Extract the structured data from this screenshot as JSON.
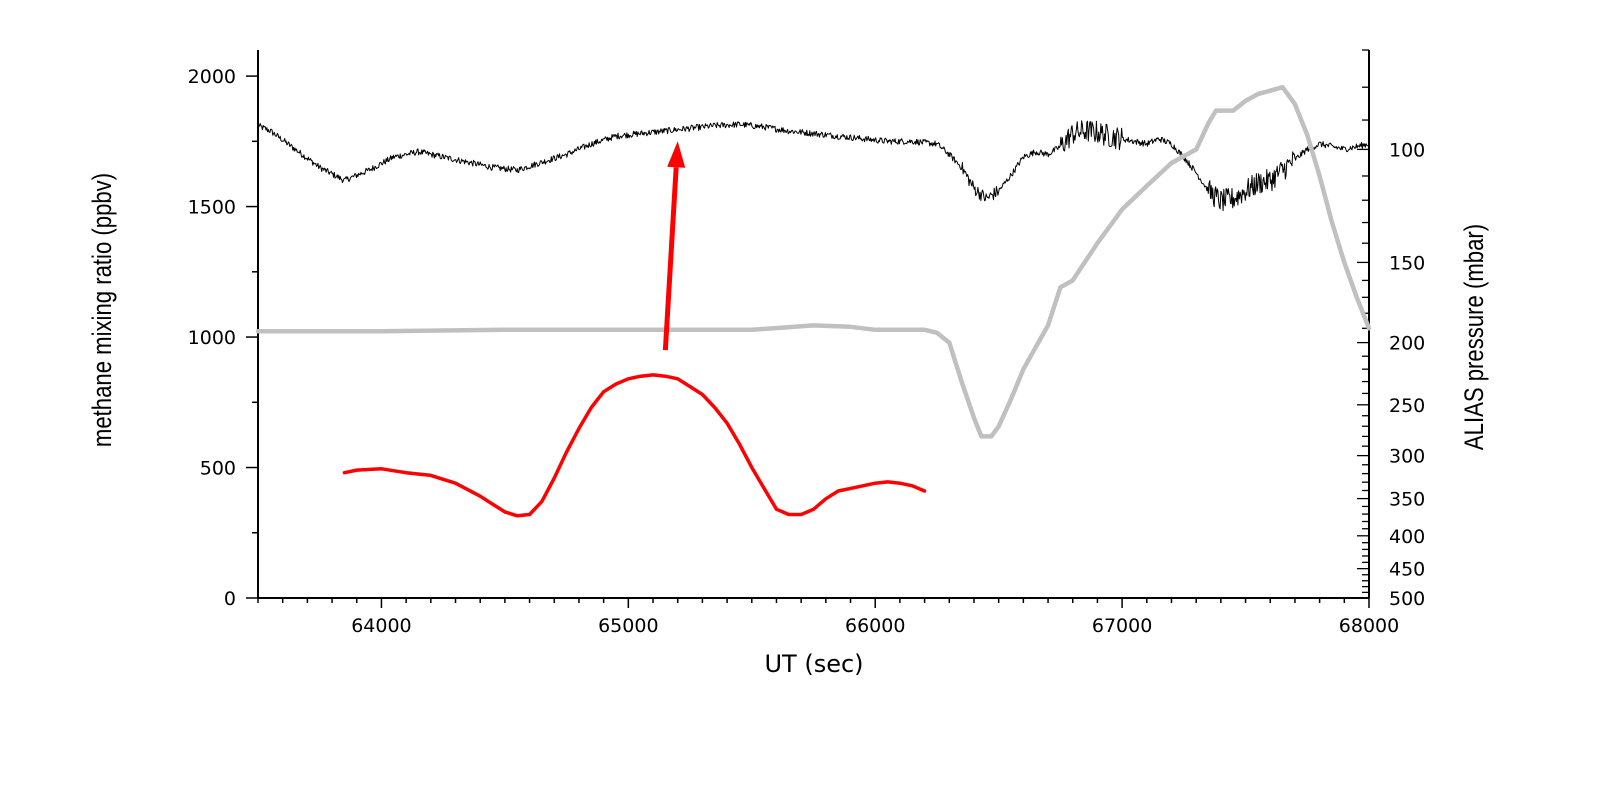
{
  "chart_data": {
    "type": "line",
    "title": "",
    "xlabel": "UT (sec)",
    "ylabel": "methane mixing ratio (ppbv)",
    "y2label": "ALIAS pressure (mbar)",
    "xlim": [
      63500,
      68000
    ],
    "ylim": [
      0,
      2100
    ],
    "y2lim": [
      70,
      500
    ],
    "y2_scale": "log",
    "y2_inverted": true,
    "grid": false,
    "legend": "none",
    "x_ticks": [
      "64000",
      "65000",
      "66000",
      "67000",
      "68000"
    ],
    "y_ticks": [
      "0",
      "500",
      "1000",
      "1500",
      "2000"
    ],
    "y2_ticks": [
      "100",
      "150",
      "200",
      "250",
      "300",
      "350",
      "400",
      "450",
      "500"
    ],
    "series": [
      {
        "axis": "left",
        "color": "#000000",
        "noisy": true,
        "x": [
          63500,
          63550,
          63650,
          63750,
          63850,
          63950,
          64050,
          64150,
          64250,
          64350,
          64450,
          64550,
          64650,
          64750,
          64850,
          64950,
          65050,
          65150,
          65250,
          65350,
          65450,
          65550,
          65650,
          65750,
          65850,
          65950,
          66050,
          66150,
          66250,
          66300,
          66350,
          66400,
          66450,
          66500,
          66550,
          66600,
          66650,
          66700,
          66750,
          66800,
          66850,
          66900,
          66950,
          67000,
          67050,
          67100,
          67150,
          67200,
          67250,
          67300,
          67350,
          67400,
          67450,
          67500,
          67550,
          67600,
          67650,
          67700,
          67750,
          67800,
          67850,
          67900,
          67950,
          68000
        ],
        "values": [
          1810,
          1790,
          1720,
          1650,
          1600,
          1640,
          1690,
          1710,
          1690,
          1670,
          1650,
          1640,
          1670,
          1700,
          1740,
          1770,
          1780,
          1790,
          1800,
          1810,
          1815,
          1805,
          1790,
          1780,
          1770,
          1760,
          1750,
          1750,
          1740,
          1700,
          1650,
          1570,
          1530,
          1560,
          1620,
          1690,
          1710,
          1700,
          1730,
          1780,
          1790,
          1785,
          1770,
          1760,
          1750,
          1740,
          1760,
          1740,
          1690,
          1630,
          1560,
          1520,
          1530,
          1560,
          1590,
          1600,
          1640,
          1680,
          1720,
          1740,
          1730,
          1720,
          1730,
          1740
        ]
      },
      {
        "axis": "right",
        "color": "#c0c0c0",
        "x": [
          63500,
          64000,
          64500,
          65000,
          65500,
          65750,
          65900,
          66000,
          66100,
          66200,
          66250,
          66300,
          66350,
          66400,
          66430,
          66470,
          66500,
          66550,
          66600,
          66700,
          66750,
          66800,
          66900,
          67000,
          67100,
          67200,
          67300,
          67350,
          67380,
          67450,
          67500,
          67550,
          67600,
          67650,
          67700,
          67750,
          67800,
          67850,
          67900,
          67950,
          68000
        ],
        "values": [
          192,
          192,
          191,
          191,
          191,
          188,
          189,
          191,
          191,
          191,
          193,
          200,
          230,
          262,
          280,
          280,
          270,
          245,
          220,
          188,
          164,
          160,
          140,
          124,
          114,
          105,
          100,
          91,
          87,
          87,
          84,
          82,
          81,
          80,
          85,
          95,
          110,
          130,
          150,
          170,
          190
        ]
      },
      {
        "axis": "left",
        "color": "#ff0000",
        "x": [
          63850,
          63900,
          64000,
          64100,
          64200,
          64300,
          64400,
          64450,
          64500,
          64550,
          64600,
          64650,
          64700,
          64750,
          64800,
          64850,
          64900,
          64950,
          65000,
          65050,
          65100,
          65150,
          65200,
          65250,
          65300,
          65350,
          65400,
          65450,
          65500,
          65550,
          65600,
          65650,
          65700,
          65750,
          65800,
          65850,
          65900,
          65950,
          66000,
          66050,
          66100,
          66150,
          66200
        ],
        "values": [
          480,
          490,
          495,
          480,
          470,
          440,
          390,
          360,
          330,
          315,
          320,
          370,
          460,
          560,
          650,
          730,
          790,
          820,
          840,
          850,
          855,
          850,
          840,
          810,
          780,
          730,
          670,
          590,
          500,
          420,
          340,
          320,
          320,
          340,
          380,
          410,
          420,
          430,
          440,
          445,
          440,
          430,
          410
        ]
      }
    ],
    "annotations": [
      {
        "type": "arrow",
        "color": "#ff0000",
        "from": [
          65150,
          950
        ],
        "to": [
          65200,
          1750
        ]
      }
    ]
  }
}
